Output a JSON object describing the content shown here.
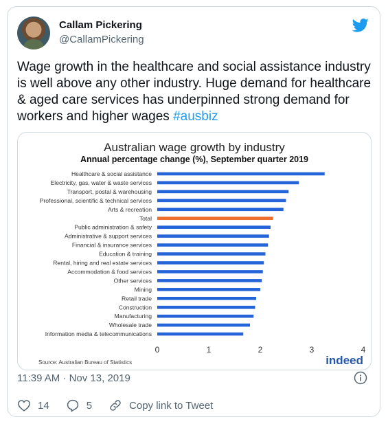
{
  "author": {
    "name": "Callam Pickering",
    "handle": "@CallamPickering"
  },
  "tweet": {
    "text": "Wage growth in the healthcare and social assistance industry is well above any other industry. Huge demand for healthcare & aged care services has underpinned strong demand for workers and higher wages ",
    "hashtag": "#ausbiz"
  },
  "meta": {
    "timestamp": "11:39 AM · Nov 13, 2019"
  },
  "actions": {
    "likes": "14",
    "replies": "5",
    "copy_link": "Copy link to Tweet"
  },
  "icons": {
    "brand": "twitter-bird-icon",
    "info": "info-icon",
    "like": "heart-icon",
    "reply": "reply-icon",
    "link": "link-icon"
  },
  "colors": {
    "twitter_blue": "#1d9bf0",
    "bar_blue": "#2563d9",
    "bar_highlight": "#f07030"
  },
  "chart_data": {
    "type": "bar",
    "orientation": "horizontal",
    "title": "Australian wage growth by industry",
    "subtitle": "Annual percentage change (%), September quarter 2019",
    "source": "Source: Australian Bureau of Statistics",
    "brand": "indeed",
    "categories": [
      "Healthcare & social assistance",
      "Electricity, gas, water & waste services",
      "Transport, postal & warehousing",
      "Professional, scientific & technical services",
      "Arts & recreation",
      "Total",
      "Public administration & safety",
      "Administrative & support services",
      "Financial & insurance services",
      "Education & training",
      "Rental, hiring and real estate services",
      "Accommodation & food services",
      "Other services",
      "Mining",
      "Retail trade",
      "Construction",
      "Manufacturing",
      "Wholesale trade",
      "Information media & telecommunications"
    ],
    "values": [
      3.25,
      2.75,
      2.55,
      2.5,
      2.45,
      2.25,
      2.2,
      2.17,
      2.15,
      2.1,
      2.07,
      2.05,
      2.03,
      2.0,
      1.92,
      1.9,
      1.87,
      1.8,
      1.67
    ],
    "highlight": "Total",
    "xlim": [
      0,
      4
    ],
    "xticks": [
      "0",
      "1",
      "2",
      "3",
      "4"
    ],
    "grid": false,
    "legend": "none"
  }
}
